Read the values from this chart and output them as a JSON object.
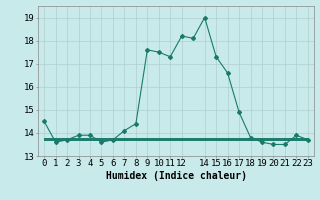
{
  "x": [
    0,
    1,
    2,
    3,
    4,
    5,
    6,
    7,
    8,
    9,
    10,
    11,
    12,
    13,
    14,
    15,
    16,
    17,
    18,
    19,
    20,
    21,
    22,
    23
  ],
  "y_main": [
    14.5,
    13.6,
    13.7,
    13.9,
    13.9,
    13.6,
    13.7,
    14.1,
    14.4,
    17.6,
    17.5,
    17.3,
    18.2,
    18.1,
    19.0,
    17.3,
    16.6,
    14.9,
    13.8,
    13.6,
    13.5,
    13.5,
    13.9,
    13.7
  ],
  "y_flat1": [
    13.7,
    13.7,
    13.7,
    13.7,
    13.7,
    13.7,
    13.7,
    13.7,
    13.7,
    13.7,
    13.7,
    13.7,
    13.7,
    13.7,
    13.7,
    13.7,
    13.7,
    13.7,
    13.7,
    13.7,
    13.7,
    13.7,
    13.7,
    13.7
  ],
  "y_flat2": [
    13.75,
    13.75,
    13.75,
    13.75,
    13.75,
    13.75,
    13.75,
    13.75,
    13.75,
    13.75,
    13.75,
    13.75,
    13.75,
    13.75,
    13.75,
    13.75,
    13.75,
    13.75,
    13.75,
    13.75,
    13.75,
    13.75,
    13.75,
    13.75
  ],
  "y_flat3": [
    13.8,
    13.8,
    13.8,
    13.8,
    13.8,
    13.8,
    13.8,
    13.8,
    13.8,
    13.8,
    13.8,
    13.8,
    13.8,
    13.8,
    13.8,
    13.8,
    13.8,
    13.8,
    13.8,
    13.8,
    13.8,
    13.8,
    13.8,
    13.8
  ],
  "line_color": "#1a7a6a",
  "background_color": "#c8eaea",
  "grid_color": "#b0cece",
  "xlabel": "Humidex (Indice chaleur)",
  "ylim": [
    13,
    19.5
  ],
  "xlim": [
    -0.5,
    23.5
  ],
  "yticks": [
    13,
    14,
    15,
    16,
    17,
    18,
    19
  ],
  "xticks": [
    0,
    1,
    2,
    3,
    4,
    5,
    6,
    7,
    8,
    9,
    10,
    11,
    12,
    14,
    15,
    16,
    17,
    18,
    19,
    20,
    21,
    22,
    23
  ],
  "xlabel_fontsize": 7,
  "tick_fontsize": 6.5
}
